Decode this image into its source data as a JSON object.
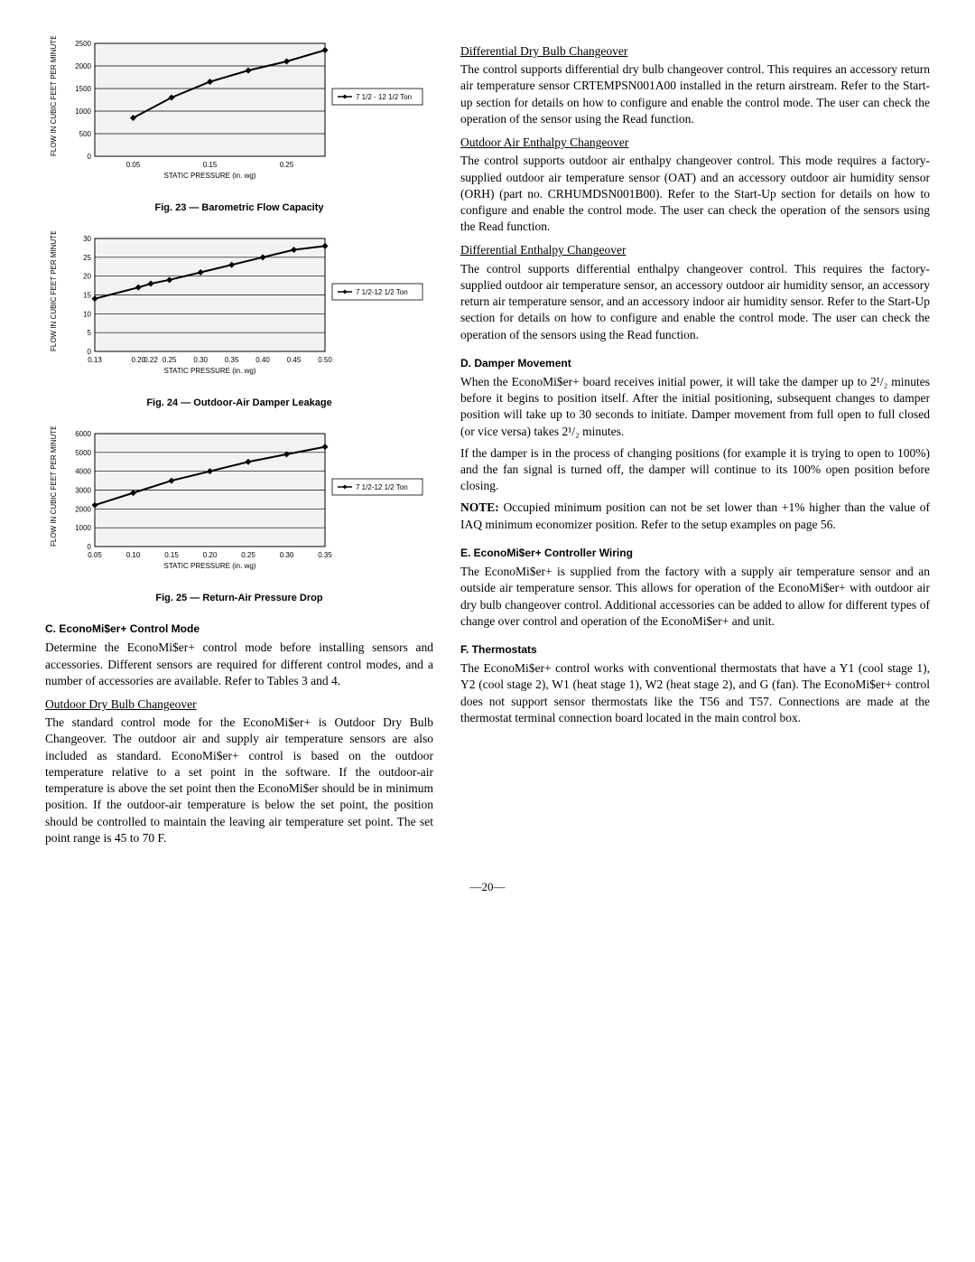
{
  "charts": {
    "fig23": {
      "caption": "Fig. 23 — Barometric Flow Capacity",
      "type": "line",
      "x_ticks": [
        0.05,
        0.15,
        0.25
      ],
      "y_ticks": [
        0,
        500,
        1000,
        1500,
        2000,
        2500
      ],
      "xlim": [
        0.0,
        0.3
      ],
      "ylim": [
        0,
        2500
      ],
      "x_label": "STATIC PRESSURE (in. wg)",
      "y_label": "FLOW IN CUBIC FEET PER MINUTE (cfm)",
      "background": "#f2f2f1",
      "grid_color": "#000000",
      "line_color": "#000000",
      "line_width": 2,
      "marker": "diamond",
      "legend": "7 1/2 - 12 1/2 Ton",
      "points_x": [
        0.05,
        0.1,
        0.15,
        0.2,
        0.25,
        0.3
      ],
      "points_y": [
        850,
        1300,
        1650,
        1900,
        2100,
        2350
      ]
    },
    "fig24": {
      "caption": "Fig. 24 — Outdoor-Air Damper Leakage",
      "type": "line",
      "x_ticks": [
        0.13,
        0.2,
        0.22,
        0.25,
        0.3,
        0.35,
        0.4,
        0.45,
        0.5
      ],
      "y_ticks": [
        0,
        5,
        10,
        15,
        20,
        25,
        30
      ],
      "xlim": [
        0.13,
        0.5
      ],
      "ylim": [
        0,
        30
      ],
      "x_label": "STATIC PRESSURE (in. wg)",
      "y_label": "FLOW IN CUBIC FEET PER MINUTE (cfm)",
      "background": "#f2f2f1",
      "grid_color": "#000000",
      "line_color": "#000000",
      "line_width": 2,
      "marker": "diamond",
      "legend": "7 1/2-12 1/2 Ton",
      "points_x": [
        0.13,
        0.2,
        0.22,
        0.25,
        0.3,
        0.35,
        0.4,
        0.45,
        0.5
      ],
      "points_y": [
        14,
        17,
        18,
        19,
        21,
        23,
        25,
        27,
        28
      ]
    },
    "fig25": {
      "caption": "Fig. 25 — Return-Air Pressure Drop",
      "type": "line",
      "x_ticks": [
        0.05,
        0.1,
        0.15,
        0.2,
        0.25,
        0.3,
        0.35
      ],
      "y_ticks": [
        0,
        1000,
        2000,
        3000,
        4000,
        5000,
        6000
      ],
      "xlim": [
        0.05,
        0.35
      ],
      "ylim": [
        0,
        6000
      ],
      "x_label": "STATIC PRESSURE (in. wg)",
      "y_label": "FLOW IN CUBIC FEET PER MINUTE (cfm)",
      "background": "#f2f2f1",
      "grid_color": "#000000",
      "line_color": "#000000",
      "line_width": 2,
      "marker": "diamond",
      "legend": "7 1/2-12 1/2 Ton",
      "points_x": [
        0.05,
        0.1,
        0.15,
        0.2,
        0.25,
        0.3,
        0.35
      ],
      "points_y": [
        2200,
        2850,
        3500,
        4000,
        4500,
        4900,
        5300
      ]
    }
  },
  "left": {
    "sectionC_head": "C. EconoMi$er+ Control Mode",
    "sectionC_p1": "Determine the EconoMi$er+ control mode before installing sensors and accessories. Different sensors are required for different control modes, and a number of accessories are available. Refer to Tables 3 and 4.",
    "odb_head": "Outdoor Dry Bulb Changeover",
    "odb_p1": "The standard control mode for the EconoMi$er+ is Outdoor Dry Bulb Changeover. The outdoor air and supply air temperature sensors are also included as standard. EconoMi$er+ control is based on the outdoor temperature relative to a set point in the software. If the outdoor-air temperature is above the set point then the EconoMi$er should be in minimum position. If the outdoor-air temperature is below the set point, the position should be controlled to maintain the leaving air temperature set point. The set point range is 45 to 70 F."
  },
  "right": {
    "ddb_head": "Differential Dry Bulb Changeover",
    "ddb_p1": "The control supports differential dry bulb changeover control. This requires an accessory return air temperature sensor CRTEMPSN001A00 installed in the return airstream. Refer to the Start-up section for details on how to configure and enable the control mode. The user can check the operation of the sensor using the Read function.",
    "oae_head": "Outdoor Air Enthalpy Changeover",
    "oae_p1": "The control supports outdoor air enthalpy changeover control. This mode requires a factory-supplied outdoor air temperature sensor (OAT) and an accessory outdoor air humidity sensor (ORH) (part no. CRHUMDSN001B00). Refer to the Start-Up section for details on how to configure and enable the control mode. The user can check the operation of the sensors using the Read function.",
    "dec_head": "Differential Enthalpy Changeover",
    "dec_p1": "The control supports differential enthalpy changeover control. This requires the factory-supplied outdoor air temperature sensor, an accessory outdoor air humidity sensor, an accessory return air temperature sensor, and an accessory indoor air humidity sensor. Refer to the Start-Up section for details on how to configure and enable the control mode. The user can check the operation of the sensors using the Read function.",
    "sectionD_head": "D. Damper Movement",
    "sectionD_p1": "When the EconoMi$er+ board receives initial power, it will take the damper up to 2¹/₂ minutes before it begins to position itself. After the initial positioning, subsequent changes to damper position will take up to 30 seconds to initiate. Damper movement from full open to full closed (or vice versa) takes 2¹/₂ minutes.",
    "sectionD_p2": "If the damper is in the process of changing positions (for example it is trying to open to 100%) and the fan signal is turned off, the damper will continue to its 100% open position before closing.",
    "note_label": "NOTE:",
    "sectionD_note": " Occupied minimum position can not be set lower than +1% higher than the value of IAQ minimum economizer position. Refer to the setup examples on page 56.",
    "sectionE_head": "E. EconoMi$er+ Controller Wiring",
    "sectionE_p1": "The EconoMi$er+ is supplied from the factory with a supply air temperature sensor and an outside air temperature sensor. This allows for operation of the EconoMi$er+ with outdoor air dry bulb changeover control. Additional accessories can be added to allow for different types of change over control and operation of the EconoMi$er+ and unit.",
    "sectionF_head": "F. Thermostats",
    "sectionF_p1": "The EconoMi$er+ control works with conventional thermostats that have a Y1 (cool stage 1), Y2 (cool stage 2), W1 (heat stage 1), W2 (heat stage 2), and G (fan). The EconoMi$er+ control does not support sensor thermostats like the T56 and T57. Connections are made at the thermostat terminal connection board located in the main control box."
  },
  "page_number": "—20—"
}
